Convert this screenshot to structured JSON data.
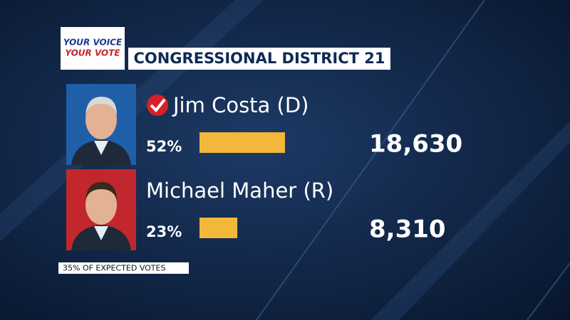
{
  "logo": {
    "line1": "YOUR VOICE",
    "line2": "YOUR VOTE"
  },
  "header": {
    "title": "CONGRESSIONAL DISTRICT 21"
  },
  "candidates": [
    {
      "name": "Jim Costa (D)",
      "winner": true,
      "percent": 52,
      "percent_label": "52%",
      "votes": 18630,
      "votes_label": "18,630",
      "photo_color": "#1f5fa8"
    },
    {
      "name": "Michael Maher (R)",
      "winner": false,
      "percent": 23,
      "percent_label": "23%",
      "votes": 8310,
      "votes_label": "8,310",
      "photo_color": "#c1272d"
    }
  ],
  "footer": {
    "note": "35% OF EXPECTED VOTES"
  },
  "bar_color": "#f3b73b"
}
